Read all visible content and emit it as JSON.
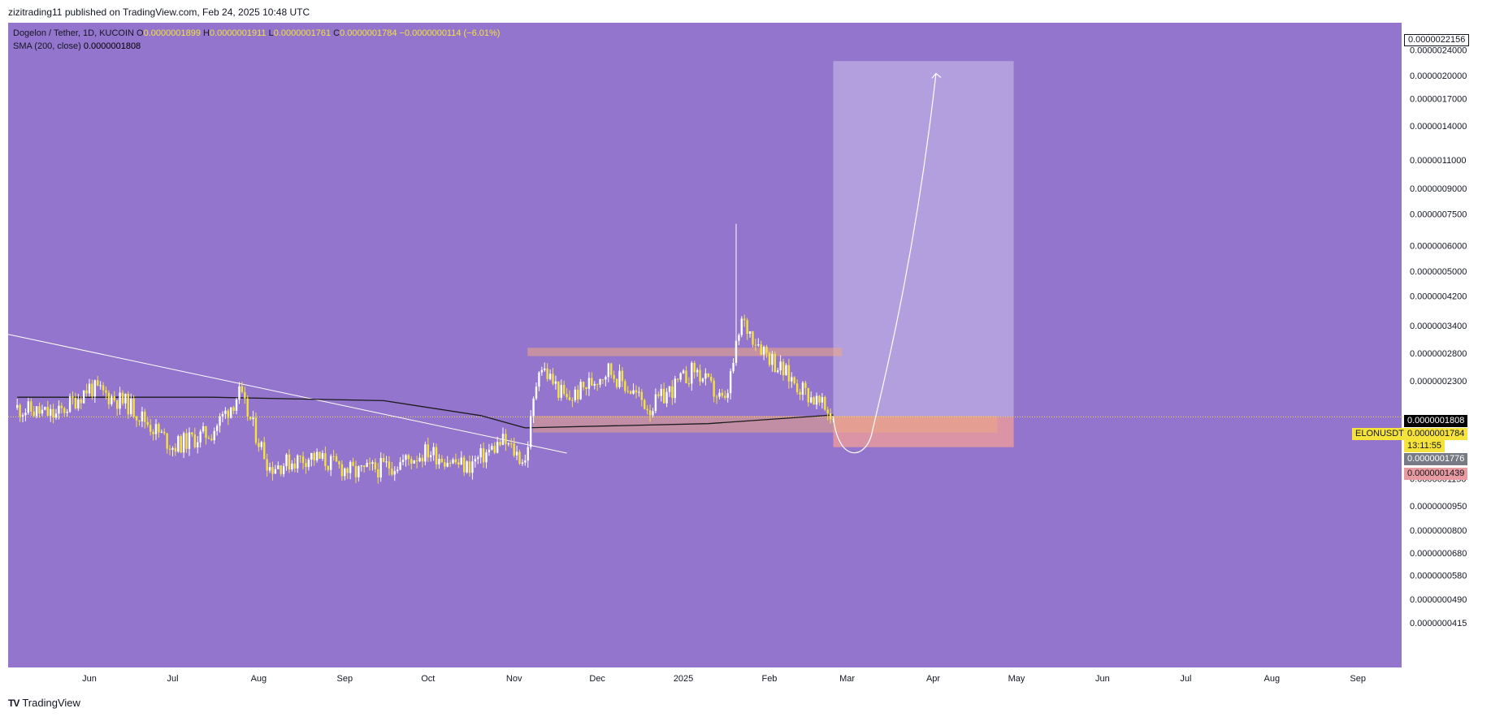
{
  "header": {
    "published": "zizitrading11 published on TradingView.com, Feb 24, 2025 10:48 UTC"
  },
  "legend": {
    "pair": "Dogelon / Tether, 1D, KUCOIN",
    "o_label": "O",
    "o": "0.0000001899",
    "h_label": "H",
    "h": "0.0000001911",
    "l_label": "L",
    "l": "0.0000001761",
    "c_label": "C",
    "c": "0.0000001784",
    "change": "−0.0000000114 (−6.01%)",
    "sma_label": "SMA (200, close)",
    "sma": "0.0000001808"
  },
  "colors": {
    "background": "#9475cd",
    "candle_up": "#ffffff",
    "candle_down": "#f5e23b",
    "sma_line": "#1a1a1a",
    "zone": "#f0a880",
    "projection_box": "#b8a6e0",
    "stop_box": "#e79a9f",
    "trendline": "#ffffff"
  },
  "price_tags": {
    "target": "0.0000022156",
    "sma": "0.0000001808",
    "last": "0.0000001784",
    "countdown": "13:11:55",
    "gray": "0.0000001776",
    "stop": "0.0000001439",
    "symbol": "ELONUSDT"
  },
  "footer": {
    "logo": "TV",
    "brand": "TradingView"
  },
  "chart_data": {
    "type": "candlestick",
    "title": "Dogelon / Tether, 1D, KUCOIN",
    "y_scale": "log",
    "ylim": [
      4.15e-08,
      2.4e-08
    ],
    "y_ticks": [
      "0.0000024000",
      "0.0000020000",
      "0.0000017000",
      "0.0000014000",
      "0.0000011000",
      "0.0000009000",
      "0.0000007500",
      "0.0000006000",
      "0.0000005000",
      "0.0000004200",
      "0.0000003400",
      "0.0000002800",
      "0.0000002300",
      "0.0000001150",
      "0.0000000950",
      "0.0000000800",
      "0.0000000680",
      "0.0000000580",
      "0.0000000490",
      "0.0000000415"
    ],
    "x_ticks": [
      "Jun",
      "Jul",
      "Aug",
      "Sep",
      "Oct",
      "Nov",
      "Dec",
      "2025",
      "Feb",
      "Mar",
      "Apr",
      "May",
      "Jun",
      "Jul",
      "Aug",
      "Sep"
    ],
    "series": [
      {
        "name": "Dogelon / Tether",
        "approx_close": [
          {
            "date": "2024-05-06",
            "close": 1.9e-07
          },
          {
            "date": "2024-05-20",
            "close": 1.8e-07
          },
          {
            "date": "2024-06-01",
            "close": 2.2e-07
          },
          {
            "date": "2024-06-15",
            "close": 1.95e-07
          },
          {
            "date": "2024-07-01",
            "close": 1.45e-07
          },
          {
            "date": "2024-07-15",
            "close": 1.6e-07
          },
          {
            "date": "2024-07-25",
            "close": 2.1e-07
          },
          {
            "date": "2024-08-05",
            "close": 1.25e-07
          },
          {
            "date": "2024-08-20",
            "close": 1.35e-07
          },
          {
            "date": "2024-09-05",
            "close": 1.2e-07
          },
          {
            "date": "2024-09-20",
            "close": 1.28e-07
          },
          {
            "date": "2024-10-01",
            "close": 1.4e-07
          },
          {
            "date": "2024-10-15",
            "close": 1.25e-07
          },
          {
            "date": "2024-10-28",
            "close": 1.5e-07
          },
          {
            "date": "2024-11-05",
            "close": 1.3e-07
          },
          {
            "date": "2024-11-10",
            "close": 2.6e-07
          },
          {
            "date": "2024-11-20",
            "close": 2e-07
          },
          {
            "date": "2024-12-05",
            "close": 2.5e-07
          },
          {
            "date": "2024-12-20",
            "close": 1.9e-07
          },
          {
            "date": "2025-01-05",
            "close": 2.5e-07
          },
          {
            "date": "2025-01-16",
            "close": 1.95e-07
          },
          {
            "date": "2025-01-22",
            "close": 3.5e-07
          },
          {
            "date": "2025-02-05",
            "close": 2.5e-07
          },
          {
            "date": "2025-02-15",
            "close": 2.1e-07
          },
          {
            "date": "2025-02-24",
            "close": 1.784e-07
          }
        ],
        "spike_high": {
          "date": "2025-01-20",
          "high": 7e-07
        }
      },
      {
        "name": "SMA (200, close)",
        "approx": [
          {
            "date": "2024-05-06",
            "value": 2.05e-07
          },
          {
            "date": "2024-07-15",
            "value": 2.05e-07
          },
          {
            "date": "2024-09-15",
            "value": 2e-07
          },
          {
            "date": "2024-10-20",
            "value": 1.8e-07
          },
          {
            "date": "2024-11-05",
            "value": 1.65e-07
          },
          {
            "date": "2025-01-10",
            "value": 1.7e-07
          },
          {
            "date": "2025-02-24",
            "value": 1.808e-07
          }
        ]
      }
    ],
    "annotations": {
      "resistance_zone": [
        2.75e-07,
        2.9e-07
      ],
      "support_zone": [
        1.6e-07,
        1.79e-07
      ],
      "target_price": 2.2156e-06,
      "entry_price": 1.784e-07,
      "stop_price": 1.439e-07
    }
  }
}
